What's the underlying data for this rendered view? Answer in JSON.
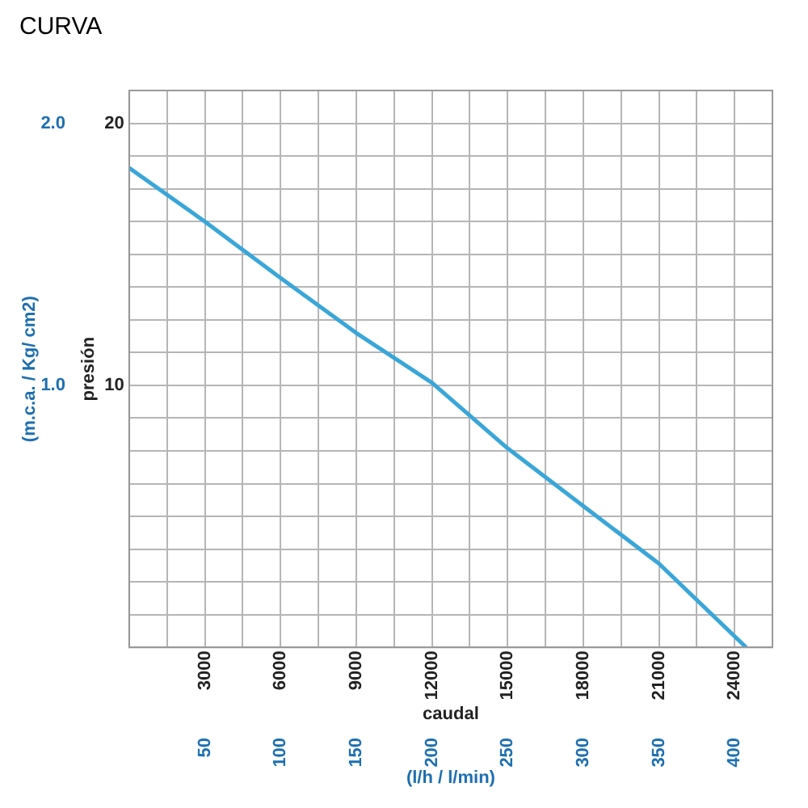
{
  "chart_data": {
    "type": "line",
    "title": "CURVA",
    "xlabel": "caudal",
    "x2label": "(l/h / l/min)",
    "ylabel": "presión",
    "y2label": "(m.c.a. / Kg/ cm2)",
    "x": [
      0,
      3000,
      6000,
      9000,
      12000,
      15000,
      18000,
      21000,
      24460
    ],
    "series": [
      {
        "color": "#3aa6d8",
        "values": [
          18.3,
          16.25,
          14.1,
          12.0,
          10.1,
          7.6,
          5.4,
          3.2,
          0
        ]
      }
    ],
    "xlim": [
      0,
      25500
    ],
    "xticks": [
      {
        "value": 1500,
        "label": null
      },
      3000,
      {
        "value": 4500,
        "label": null
      },
      6000,
      {
        "value": 7500,
        "label": null
      },
      9000,
      {
        "value": 10500,
        "label": null
      },
      12000,
      {
        "value": 13500,
        "label": null
      },
      15000,
      {
        "value": 16500,
        "label": null
      },
      18000,
      {
        "value": 19500,
        "label": null
      },
      21000,
      {
        "value": 22500,
        "label": null
      },
      24000
    ],
    "x2lim": [
      0,
      425
    ],
    "x2ticks": [
      50,
      100,
      150,
      200,
      250,
      300,
      350,
      400
    ],
    "ylim": [
      0,
      21.25
    ],
    "yticks": [
      {
        "value": 1.25,
        "label": null
      },
      {
        "value": 2.5,
        "label": null
      },
      {
        "value": 3.75,
        "label": null
      },
      {
        "value": 5,
        "label": null
      },
      {
        "value": 6.25,
        "label": null
      },
      {
        "value": 7.5,
        "label": null
      },
      {
        "value": 8.75,
        "label": null
      },
      10,
      {
        "value": 11.25,
        "label": null
      },
      {
        "value": 12.5,
        "label": null
      },
      {
        "value": 13.75,
        "label": null
      },
      {
        "value": 15,
        "label": null
      },
      {
        "value": 16.25,
        "label": null
      },
      {
        "value": 17.5,
        "label": null
      },
      {
        "value": 18.75,
        "label": null
      },
      20
    ],
    "y2lim": [
      0,
      2.125
    ],
    "y2ticks": [
      {
        "value": 1,
        "label": "1.0"
      },
      {
        "value": 2,
        "label": "2.0"
      }
    ],
    "grid": true,
    "marker": "none",
    "line_style": "solid",
    "legend": false
  }
}
